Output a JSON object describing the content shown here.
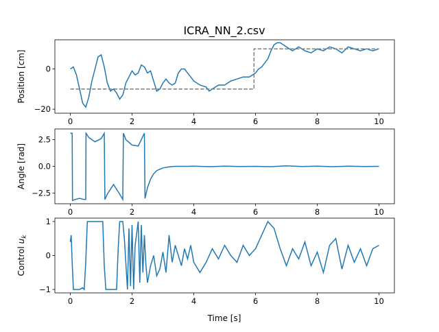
{
  "figure": {
    "title": "ICRA_NN_2.csv",
    "xlabel": "Time [s]"
  },
  "chart_data": [
    {
      "type": "line",
      "ylabel": "Position [cm]",
      "xlim": [
        -0.5,
        10.5
      ],
      "ylim": [
        -22,
        14.5
      ],
      "xticks": [
        0,
        2,
        4,
        6,
        8,
        10
      ],
      "yticks": [
        -20,
        0
      ],
      "xtick_labels": [
        "0",
        "2",
        "4",
        "6",
        "8",
        "10"
      ],
      "ytick_labels": [
        "−20",
        "0"
      ],
      "series": [
        {
          "color": "#1f77b4",
          "style": "solid",
          "x": [
            0,
            0.1,
            0.2,
            0.3,
            0.4,
            0.5,
            0.6,
            0.7,
            0.8,
            0.9,
            1.0,
            1.1,
            1.2,
            1.3,
            1.4,
            1.5,
            1.6,
            1.7,
            1.8,
            1.9,
            2.0,
            2.1,
            2.2,
            2.3,
            2.4,
            2.5,
            2.6,
            2.7,
            2.8,
            2.9,
            3.0,
            3.1,
            3.2,
            3.3,
            3.4,
            3.5,
            3.6,
            3.7,
            3.8,
            3.9,
            4.0,
            4.2,
            4.4,
            4.5,
            4.6,
            4.7,
            4.8,
            5.0,
            5.2,
            5.4,
            5.6,
            5.8,
            6.0,
            6.1,
            6.2,
            6.3,
            6.4,
            6.5,
            6.6,
            6.7,
            6.8,
            6.9,
            7.0,
            7.2,
            7.4,
            7.6,
            7.8,
            8.0,
            8.2,
            8.4,
            8.6,
            8.8,
            9.0,
            9.2,
            9.4,
            9.6,
            9.8,
            10.0
          ],
          "y": [
            0,
            1,
            -3,
            -10,
            -17,
            -19,
            -14,
            -6,
            0,
            6,
            7,
            1,
            -7,
            -11,
            -10,
            -12,
            -15,
            -13,
            -7,
            -4,
            -1,
            -3,
            -2,
            2,
            1,
            -2,
            -1,
            -6,
            -11,
            -10,
            -7,
            -5,
            -7,
            -8,
            -7,
            -2,
            0,
            0,
            -2,
            -4,
            -6,
            -8,
            -9,
            -11,
            -10,
            -9,
            -8,
            -8,
            -6,
            -5,
            -4,
            -4,
            -2,
            0,
            1,
            3,
            5,
            9,
            12,
            13,
            13,
            12,
            11,
            9,
            11,
            9,
            8,
            10,
            9,
            11,
            10,
            8,
            11,
            10,
            9,
            10,
            9,
            10
          ]
        },
        {
          "color": "#7f7f7f",
          "style": "dashed",
          "x": [
            0,
            5.95,
            5.95,
            10
          ],
          "y": [
            -10,
            -10,
            10,
            10
          ]
        }
      ]
    },
    {
      "type": "line",
      "ylabel": "Angle [rad]",
      "xlim": [
        -0.5,
        10.5
      ],
      "ylim": [
        -3.5,
        3.5
      ],
      "xticks": [
        0,
        2,
        4,
        6,
        8,
        10
      ],
      "yticks": [
        -2.5,
        0.0,
        2.5
      ],
      "xtick_labels": [
        "0",
        "2",
        "4",
        "6",
        "8",
        "10"
      ],
      "ytick_labels": [
        "−2.5",
        "0.0",
        "2.5"
      ],
      "series": [
        {
          "color": "#1f77b4",
          "style": "solid",
          "x": [
            0,
            0.06,
            0.07,
            0.15,
            0.3,
            0.45,
            0.5,
            0.51,
            0.6,
            0.8,
            1.0,
            1.1,
            1.12,
            1.2,
            1.4,
            1.6,
            1.7,
            1.72,
            1.8,
            2.0,
            2.2,
            2.4,
            2.42,
            2.5,
            2.6,
            2.7,
            2.8,
            3.0,
            3.2,
            3.4,
            3.6,
            3.8,
            4.0,
            4.5,
            5.0,
            5.5,
            6.0,
            6.5,
            7.0,
            7.5,
            8.0,
            8.5,
            9.0,
            9.5,
            10.0
          ],
          "y": [
            3.1,
            3.1,
            -3.2,
            -3.1,
            -3.0,
            -3.1,
            -3.1,
            3.1,
            2.7,
            2.3,
            2.6,
            3.1,
            -3.1,
            -2.6,
            -1.7,
            -2.6,
            -3.1,
            3.1,
            2.5,
            2.0,
            1.9,
            3.1,
            -3.0,
            -2.0,
            -1.2,
            -0.7,
            -0.4,
            -0.15,
            -0.05,
            0.0,
            0.0,
            0.0,
            0.02,
            -0.03,
            0.02,
            -0.02,
            0.0,
            -0.03,
            0.05,
            -0.02,
            0.02,
            -0.03,
            0.02,
            -0.02,
            0.0
          ]
        }
      ]
    },
    {
      "type": "line",
      "ylabel": "Control u_k",
      "xlim": [
        -0.5,
        10.5
      ],
      "ylim": [
        -1.1,
        1.1
      ],
      "xticks": [
        0,
        2,
        4,
        6,
        8,
        10
      ],
      "yticks": [
        -1,
        0,
        1
      ],
      "xtick_labels": [
        "0",
        "2",
        "4",
        "6",
        "8",
        "10"
      ],
      "ytick_labels": [
        "−1",
        "0",
        "1"
      ],
      "series": [
        {
          "color": "#1f77b4",
          "style": "solid",
          "x": [
            0,
            0.03,
            0.06,
            0.1,
            0.2,
            0.3,
            0.4,
            0.45,
            0.5,
            0.55,
            1.05,
            1.1,
            1.15,
            1.3,
            1.5,
            1.55,
            1.6,
            1.7,
            1.75,
            1.85,
            1.9,
            1.95,
            2.0,
            2.05,
            2.1,
            2.2,
            2.25,
            2.3,
            2.35,
            2.4,
            2.45,
            2.5,
            2.6,
            2.7,
            2.8,
            2.9,
            3.0,
            3.1,
            3.2,
            3.3,
            3.4,
            3.5,
            3.6,
            3.7,
            3.8,
            3.9,
            4.0,
            4.2,
            4.4,
            4.6,
            4.8,
            5.0,
            5.2,
            5.4,
            5.6,
            5.8,
            6.0,
            6.2,
            6.4,
            6.6,
            6.8,
            7.0,
            7.2,
            7.4,
            7.6,
            7.8,
            8.0,
            8.2,
            8.4,
            8.6,
            8.8,
            9.0,
            9.2,
            9.4,
            9.6,
            9.8,
            10.0
          ],
          "y": [
            0.4,
            0.6,
            -0.2,
            -1.0,
            -1.0,
            -1.0,
            -0.95,
            -1.0,
            -0.2,
            1.0,
            1.0,
            -0.3,
            -1.0,
            -1.0,
            -1.0,
            0.2,
            1.0,
            1.0,
            0.5,
            -1.0,
            0.8,
            -0.9,
            0.9,
            -1.0,
            0.3,
            1.0,
            -0.8,
            0.9,
            -0.5,
            0.6,
            -0.3,
            -0.8,
            -0.3,
            0.0,
            -0.6,
            -0.4,
            0.1,
            -0.5,
            0.6,
            -0.2,
            0.3,
            0.0,
            -0.3,
            0.2,
            -0.1,
            0.3,
            -0.2,
            -0.5,
            -0.2,
            0.2,
            -0.1,
            0.3,
            0.0,
            -0.2,
            0.3,
            0.0,
            0.2,
            0.6,
            1.0,
            0.8,
            0.2,
            -0.3,
            0.2,
            -0.1,
            0.4,
            -0.3,
            0.1,
            -0.5,
            0.3,
            0.5,
            -0.4,
            0.3,
            -0.2,
            0.2,
            -0.3,
            0.2,
            0.3
          ]
        }
      ]
    }
  ]
}
